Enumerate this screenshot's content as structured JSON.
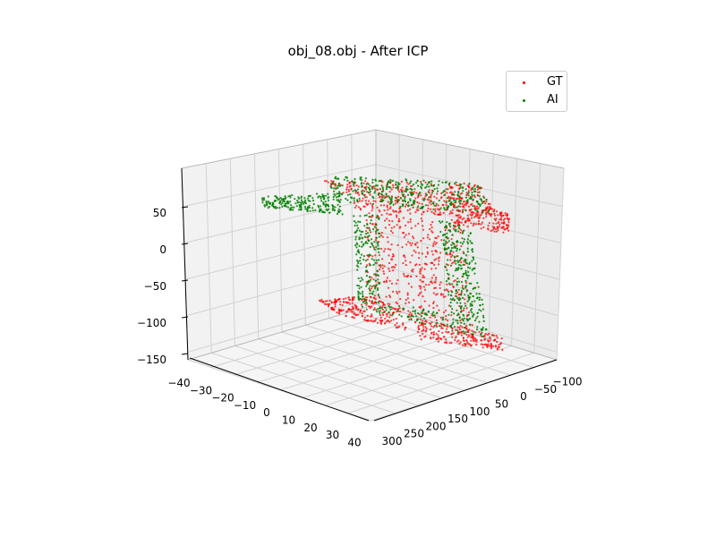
{
  "chart_data": {
    "type": "scatter",
    "projection": "3d",
    "title": "obj_08.obj - After ICP",
    "legend_position": "top-right",
    "grid": true,
    "axes": {
      "x": {
        "range": [
          -40,
          40
        ],
        "ticks": [
          "−40",
          "−30",
          "−20",
          "−10",
          "0",
          "10",
          "20",
          "30",
          "40"
        ]
      },
      "y": {
        "range": [
          -100,
          300
        ],
        "ticks": [
          "300",
          "250",
          "200",
          "150",
          "100",
          "50",
          "0",
          "−50",
          "−100"
        ]
      },
      "z": {
        "range": [
          -150,
          90
        ],
        "ticks": [
          "50",
          "0",
          "−50",
          "−100",
          "−150"
        ]
      }
    },
    "series": [
      {
        "name": "GT",
        "color": "#ff0000"
      },
      {
        "name": "AI",
        "color": "#008000"
      }
    ]
  }
}
